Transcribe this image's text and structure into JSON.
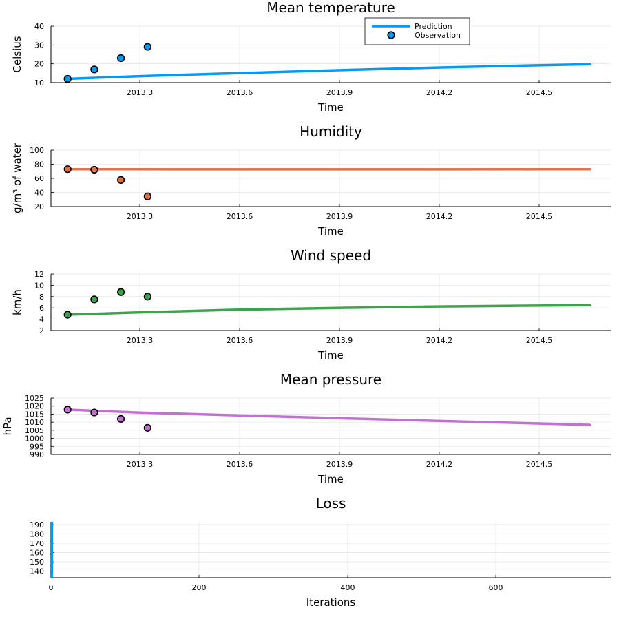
{
  "chart_data": [
    {
      "type": "line",
      "title": "Mean temperature",
      "xlabel": "Time",
      "ylabel": "Celsius",
      "xlim": [
        2013.04,
        2014.72
      ],
      "ylim": [
        10,
        40
      ],
      "xticks": [
        "2013.3",
        "2013.6",
        "2013.9",
        "2014.2",
        "2014.5"
      ],
      "yticks": [
        "10",
        "20",
        "30",
        "40"
      ],
      "grid": true,
      "color": "#009af9",
      "legend": {
        "position": "top-right",
        "entries": [
          "Prediction",
          "Observation"
        ]
      },
      "series": [
        {
          "name": "Prediction",
          "kind": "line",
          "x": [
            2013.09,
            2013.3,
            2013.6,
            2013.9,
            2014.2,
            2014.5,
            2014.66
          ],
          "y": [
            12.0,
            13.4,
            15.0,
            16.6,
            18.0,
            19.2,
            19.8
          ]
        },
        {
          "name": "Observation",
          "kind": "scatter",
          "x": [
            2013.09,
            2013.17,
            2013.25,
            2013.33
          ],
          "y": [
            12.0,
            17.0,
            23.0,
            29.0
          ]
        }
      ]
    },
    {
      "type": "line",
      "title": "Humidity",
      "xlabel": "Time",
      "ylabel": "g/m³ of water",
      "xlim": [
        2013.04,
        2014.72
      ],
      "ylim": [
        20,
        100
      ],
      "xticks": [
        "2013.3",
        "2013.6",
        "2013.9",
        "2014.2",
        "2014.5"
      ],
      "yticks": [
        "20",
        "40",
        "60",
        "80",
        "100"
      ],
      "grid": true,
      "color": "#e26f46",
      "series": [
        {
          "kind": "line",
          "x": [
            2013.09,
            2013.3,
            2013.6,
            2013.9,
            2014.2,
            2014.5,
            2014.66
          ],
          "y": [
            73.0,
            72.9,
            72.8,
            72.8,
            72.8,
            72.9,
            73.0
          ]
        },
        {
          "kind": "scatter",
          "x": [
            2013.09,
            2013.17,
            2013.25,
            2013.33
          ],
          "y": [
            73.0,
            72.2,
            57.7,
            34.4
          ]
        }
      ]
    },
    {
      "type": "line",
      "title": "Wind speed",
      "xlabel": "Time",
      "ylabel": "km/h",
      "xlim": [
        2013.04,
        2014.72
      ],
      "ylim": [
        2,
        12
      ],
      "xticks": [
        "2013.3",
        "2013.6",
        "2013.9",
        "2014.2",
        "2014.5"
      ],
      "yticks": [
        "2",
        "4",
        "6",
        "8",
        "10",
        "12"
      ],
      "grid": true,
      "color": "#3da44d",
      "series": [
        {
          "kind": "line",
          "x": [
            2013.09,
            2013.3,
            2013.6,
            2013.9,
            2014.2,
            2014.5,
            2014.66
          ],
          "y": [
            4.8,
            5.2,
            5.7,
            6.0,
            6.25,
            6.4,
            6.5
          ]
        },
        {
          "kind": "scatter",
          "x": [
            2013.09,
            2013.17,
            2013.25,
            2013.33
          ],
          "y": [
            4.8,
            7.5,
            8.8,
            8.0
          ]
        }
      ]
    },
    {
      "type": "line",
      "title": "Mean pressure",
      "xlabel": "Time",
      "ylabel": "hPa",
      "xlim": [
        2013.04,
        2014.72
      ],
      "ylim": [
        990,
        1025
      ],
      "xticks": [
        "2013.3",
        "2013.6",
        "2013.9",
        "2014.2",
        "2014.5"
      ],
      "yticks": [
        "990",
        "995",
        "1000",
        "1005",
        "1010",
        "1015",
        "1020",
        "1025"
      ],
      "grid": true,
      "color": "#c271d2",
      "series": [
        {
          "kind": "line",
          "x": [
            2013.09,
            2013.3,
            2013.6,
            2013.9,
            2014.2,
            2014.5,
            2014.66
          ],
          "y": [
            1017.8,
            1016.0,
            1014.2,
            1012.5,
            1010.8,
            1009.2,
            1008.3
          ]
        },
        {
          "kind": "scatter",
          "x": [
            2013.09,
            2013.17,
            2013.25,
            2013.33
          ],
          "y": [
            1017.8,
            1016.0,
            1012.0,
            1006.5
          ]
        }
      ]
    },
    {
      "type": "line",
      "title": "Loss",
      "xlabel": "Iterations",
      "ylabel": "",
      "xlim": [
        0,
        750
      ],
      "ylim": [
        133,
        193
      ],
      "xticks": [
        "0",
        "200",
        "400",
        "600"
      ],
      "yticks": [
        "140",
        "150",
        "160",
        "170",
        "180",
        "190"
      ],
      "grid": true,
      "color": "#009af9",
      "series": [
        {
          "kind": "bar-spike",
          "x": [
            1
          ],
          "y": [
            193
          ]
        }
      ]
    }
  ]
}
